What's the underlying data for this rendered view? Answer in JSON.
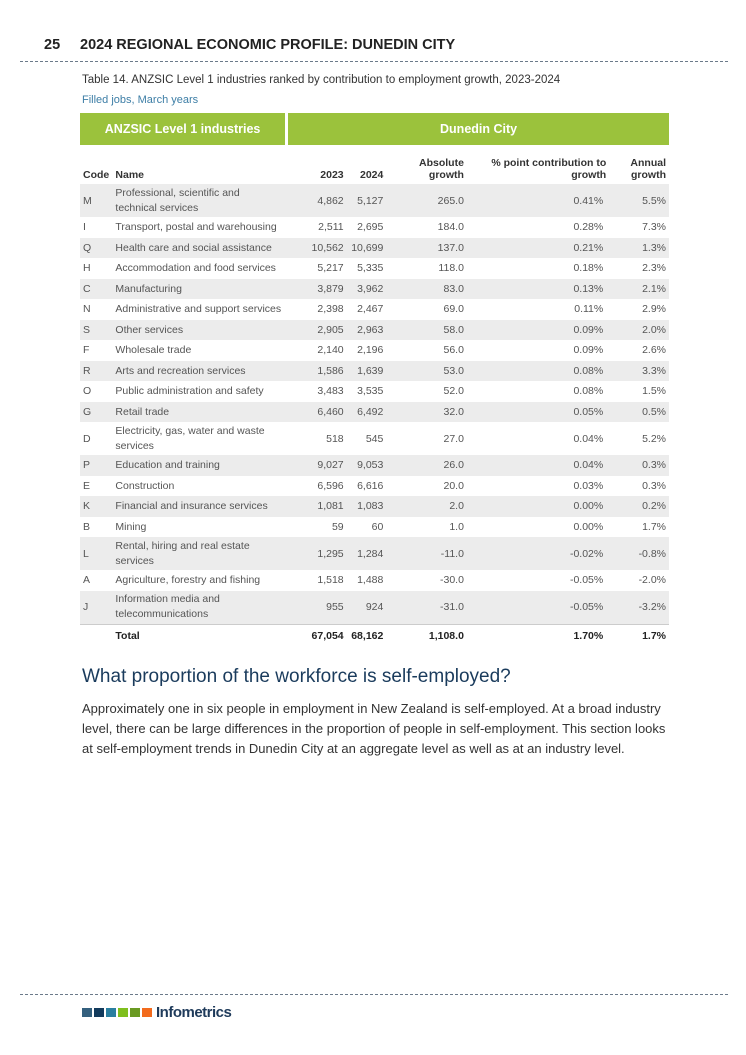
{
  "header": {
    "page_number": "25",
    "title": "2024 REGIONAL ECONOMIC PROFILE: DUNEDIN CITY"
  },
  "table": {
    "caption": "Table 14. ANZSIC Level 1 industries ranked by contribution to employment growth, 2023-2024",
    "subtitle": "Filled jobs, March years",
    "group_left": "ANZSIC Level 1 industries",
    "group_right": "Dunedin City",
    "columns": [
      "Code",
      "Name",
      "2023",
      "2024",
      "Absolute growth",
      "% point contribution to growth",
      "Annual growth"
    ],
    "rows": [
      [
        "M",
        "Professional, scientific and technical services",
        "4,862",
        "5,127",
        "265.0",
        "0.41%",
        "5.5%"
      ],
      [
        "I",
        "Transport, postal and warehousing",
        "2,511",
        "2,695",
        "184.0",
        "0.28%",
        "7.3%"
      ],
      [
        "Q",
        "Health care and social assistance",
        "10,562",
        "10,699",
        "137.0",
        "0.21%",
        "1.3%"
      ],
      [
        "H",
        "Accommodation and food services",
        "5,217",
        "5,335",
        "118.0",
        "0.18%",
        "2.3%"
      ],
      [
        "C",
        "Manufacturing",
        "3,879",
        "3,962",
        "83.0",
        "0.13%",
        "2.1%"
      ],
      [
        "N",
        "Administrative and support services",
        "2,398",
        "2,467",
        "69.0",
        "0.11%",
        "2.9%"
      ],
      [
        "S",
        "Other services",
        "2,905",
        "2,963",
        "58.0",
        "0.09%",
        "2.0%"
      ],
      [
        "F",
        "Wholesale trade",
        "2,140",
        "2,196",
        "56.0",
        "0.09%",
        "2.6%"
      ],
      [
        "R",
        "Arts and recreation services",
        "1,586",
        "1,639",
        "53.0",
        "0.08%",
        "3.3%"
      ],
      [
        "O",
        "Public administration and safety",
        "3,483",
        "3,535",
        "52.0",
        "0.08%",
        "1.5%"
      ],
      [
        "G",
        "Retail trade",
        "6,460",
        "6,492",
        "32.0",
        "0.05%",
        "0.5%"
      ],
      [
        "D",
        "Electricity, gas, water and waste services",
        "518",
        "545",
        "27.0",
        "0.04%",
        "5.2%"
      ],
      [
        "P",
        "Education and training",
        "9,027",
        "9,053",
        "26.0",
        "0.04%",
        "0.3%"
      ],
      [
        "E",
        "Construction",
        "6,596",
        "6,616",
        "20.0",
        "0.03%",
        "0.3%"
      ],
      [
        "K",
        "Financial and insurance services",
        "1,081",
        "1,083",
        "2.0",
        "0.00%",
        "0.2%"
      ],
      [
        "B",
        "Mining",
        "59",
        "60",
        "1.0",
        "0.00%",
        "1.7%"
      ],
      [
        "L",
        "Rental, hiring and real estate services",
        "1,295",
        "1,284",
        "-11.0",
        "-0.02%",
        "-0.8%"
      ],
      [
        "A",
        "Agriculture, forestry and fishing",
        "1,518",
        "1,488",
        "-30.0",
        "-0.05%",
        "-2.0%"
      ],
      [
        "J",
        "Information media and telecommunications",
        "955",
        "924",
        "-31.0",
        "-0.05%",
        "-3.2%"
      ]
    ],
    "total": [
      "",
      "Total",
      "67,054",
      "68,162",
      "1,108.0",
      "1.70%",
      "1.7%"
    ]
  },
  "section": {
    "heading": "What proportion of the workforce is self-employed?",
    "body": "Approximately one in six people in employment in New Zealand is self-employed. At a broad industry level, there can be large differences in the proportion of people in self-employment. This section looks at self-employment trends in Dunedin City at an aggregate level as well as at an industry level."
  },
  "footer": {
    "logo_text": "Infometrics",
    "logo_colors": [
      "#34607e",
      "#123a5c",
      "#2a7fa0",
      "#7fbf1e",
      "#6a9a22",
      "#f26b1d"
    ]
  },
  "colors": {
    "accent": "#9bc23c",
    "subtitle": "#3d7ea6",
    "heading": "#1a3b5c"
  }
}
